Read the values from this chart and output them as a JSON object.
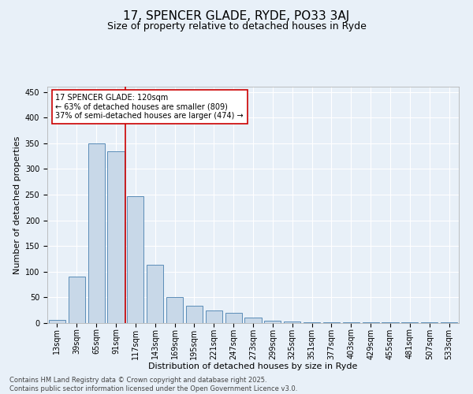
{
  "title": "17, SPENCER GLADE, RYDE, PO33 3AJ",
  "subtitle": "Size of property relative to detached houses in Ryde",
  "xlabel": "Distribution of detached houses by size in Ryde",
  "ylabel": "Number of detached properties",
  "bin_labels": [
    "13sqm",
    "39sqm",
    "65sqm",
    "91sqm",
    "117sqm",
    "143sqm",
    "169sqm",
    "195sqm",
    "221sqm",
    "247sqm",
    "273sqm",
    "299sqm",
    "325sqm",
    "351sqm",
    "377sqm",
    "403sqm",
    "429sqm",
    "455sqm",
    "481sqm",
    "507sqm",
    "533sqm"
  ],
  "bar_values": [
    6,
    90,
    350,
    335,
    247,
    113,
    50,
    33,
    25,
    20,
    10,
    5,
    3,
    2,
    1,
    1,
    1,
    1,
    1,
    1,
    2
  ],
  "bar_color": "#c8d8e8",
  "bar_edge_color": "#5b8db8",
  "vline_bin_index": 4,
  "vline_color": "#cc0000",
  "annotation_line1": "17 SPENCER GLADE: 120sqm",
  "annotation_line2": "← 63% of detached houses are smaller (809)",
  "annotation_line3": "37% of semi-detached houses are larger (474) →",
  "annotation_box_color": "#ffffff",
  "annotation_box_edge": "#cc0000",
  "ylim": [
    0,
    460
  ],
  "yticks": [
    0,
    50,
    100,
    150,
    200,
    250,
    300,
    350,
    400,
    450
  ],
  "background_color": "#e8f0f8",
  "plot_bg_color": "#e8f0f8",
  "grid_color": "#ffffff",
  "footer_line1": "Contains HM Land Registry data © Crown copyright and database right 2025.",
  "footer_line2": "Contains public sector information licensed under the Open Government Licence v3.0.",
  "title_fontsize": 11,
  "subtitle_fontsize": 9,
  "xlabel_fontsize": 8,
  "ylabel_fontsize": 8,
  "tick_fontsize": 7,
  "annotation_fontsize": 7,
  "footer_fontsize": 6
}
